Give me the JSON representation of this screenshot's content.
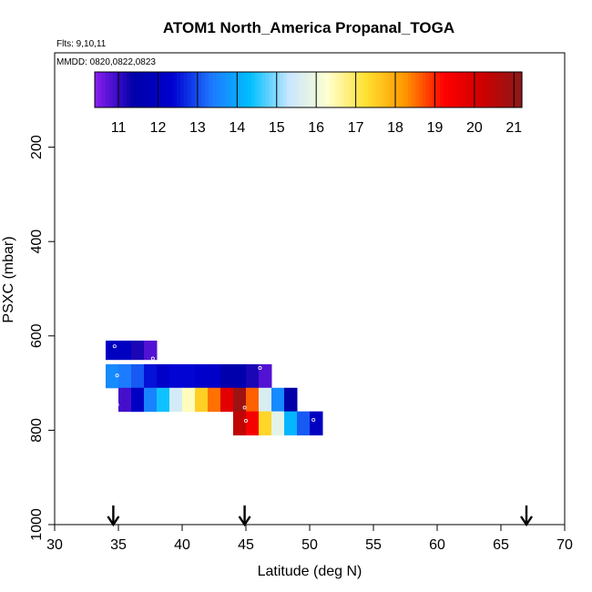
{
  "chart_data": {
    "type": "heatmap",
    "title": "ATOM1 North_America Propanal_TOGA",
    "flights_label": "Flts: 9,10,11",
    "dates_label": "MMDD: 0820,0822,0823",
    "xlabel": "Latitude (deg N)",
    "ylabel": "PSXC (mbar)",
    "xlim": [
      30,
      70
    ],
    "ylim": [
      1000,
      0
    ],
    "y_reversed": true,
    "x_ticks": [
      30,
      35,
      40,
      45,
      50,
      55,
      60,
      65,
      70
    ],
    "x_tick_labels": [
      "30",
      "35",
      "40",
      "45",
      "50",
      "55",
      "60",
      "65",
      "70"
    ],
    "y_ticks": [
      200,
      400,
      600,
      800,
      1000
    ],
    "y_tick_labels": [
      "200",
      "400",
      "600",
      "800",
      "1000"
    ],
    "colorbar": {
      "min": 10.4,
      "max": 21.2,
      "ticks": [
        11,
        12,
        13,
        14,
        15,
        16,
        17,
        18,
        19,
        20,
        21
      ],
      "tick_labels": [
        "11",
        "12",
        "13",
        "14",
        "15",
        "16",
        "17",
        "18",
        "19",
        "20",
        "21"
      ],
      "stops": [
        "#8B1EF0",
        "#0000A8",
        "#0000D0",
        "#1E78FF",
        "#00BFFF",
        "#C8E6FF",
        "#FFFFD0",
        "#FFE030",
        "#FF9600",
        "#FF0000",
        "#CD0000",
        "#8B1A1A"
      ]
    },
    "cell_width_deg": 1.0,
    "rows": [
      {
        "pressure_top": 610,
        "pressure_bottom": 650,
        "cells": [
          {
            "lat": 34.5,
            "value": 12.0
          },
          {
            "lat": 35.5,
            "value": 12.0
          },
          {
            "lat": 36.5,
            "value": 11.2
          },
          {
            "lat": 37.5,
            "value": 10.8
          }
        ]
      },
      {
        "pressure_top": 660,
        "pressure_bottom": 710,
        "cells": [
          {
            "lat": 34.5,
            "value": 13.6
          },
          {
            "lat": 35.5,
            "value": 13.4
          },
          {
            "lat": 36.5,
            "value": 13.1
          },
          {
            "lat": 37.5,
            "value": 12.5
          },
          {
            "lat": 38.5,
            "value": 12.2
          },
          {
            "lat": 39.5,
            "value": 12.4
          },
          {
            "lat": 40.5,
            "value": 12.4
          },
          {
            "lat": 41.5,
            "value": 12.3
          },
          {
            "lat": 42.5,
            "value": 12.2
          },
          {
            "lat": 43.5,
            "value": 11.5
          },
          {
            "lat": 44.5,
            "value": 11.5
          },
          {
            "lat": 45.5,
            "value": 11.2
          },
          {
            "lat": 46.5,
            "value": 10.8
          }
        ]
      },
      {
        "pressure_top": 710,
        "pressure_bottom": 760,
        "cells": [
          {
            "lat": 35.5,
            "value": 10.9
          },
          {
            "lat": 36.5,
            "value": 12.1
          },
          {
            "lat": 37.5,
            "value": 13.5
          },
          {
            "lat": 38.5,
            "value": 14.4
          },
          {
            "lat": 39.5,
            "value": 15.5
          },
          {
            "lat": 40.5,
            "value": 16.4
          },
          {
            "lat": 41.5,
            "value": 17.5
          },
          {
            "lat": 42.5,
            "value": 18.5
          },
          {
            "lat": 43.5,
            "value": 19.8
          },
          {
            "lat": 44.5,
            "value": 20.9
          },
          {
            "lat": 45.5,
            "value": 18.6
          },
          {
            "lat": 46.5,
            "value": 15.6
          },
          {
            "lat": 47.5,
            "value": 13.6
          },
          {
            "lat": 48.5,
            "value": 11.4
          }
        ]
      },
      {
        "pressure_top": 760,
        "pressure_bottom": 810,
        "cells": [
          {
            "lat": 44.5,
            "value": 20.4
          },
          {
            "lat": 45.5,
            "value": 19.4
          },
          {
            "lat": 46.5,
            "value": 17.4
          },
          {
            "lat": 47.5,
            "value": 15.8
          },
          {
            "lat": 48.5,
            "value": 14.2
          },
          {
            "lat": 49.5,
            "value": 13.1
          },
          {
            "lat": 50.5,
            "value": 12.0
          }
        ]
      }
    ],
    "markers": [
      {
        "lat": 34.7,
        "pressure": 622
      },
      {
        "lat": 37.7,
        "pressure": 648
      },
      {
        "lat": 34.9,
        "pressure": 684
      },
      {
        "lat": 46.1,
        "pressure": 668
      },
      {
        "lat": 34.9,
        "pressure": 746
      },
      {
        "lat": 44.9,
        "pressure": 752
      },
      {
        "lat": 45.0,
        "pressure": 780
      },
      {
        "lat": 50.3,
        "pressure": 778
      }
    ],
    "arrow_lats": [
      34.6,
      44.9,
      67.0
    ]
  }
}
